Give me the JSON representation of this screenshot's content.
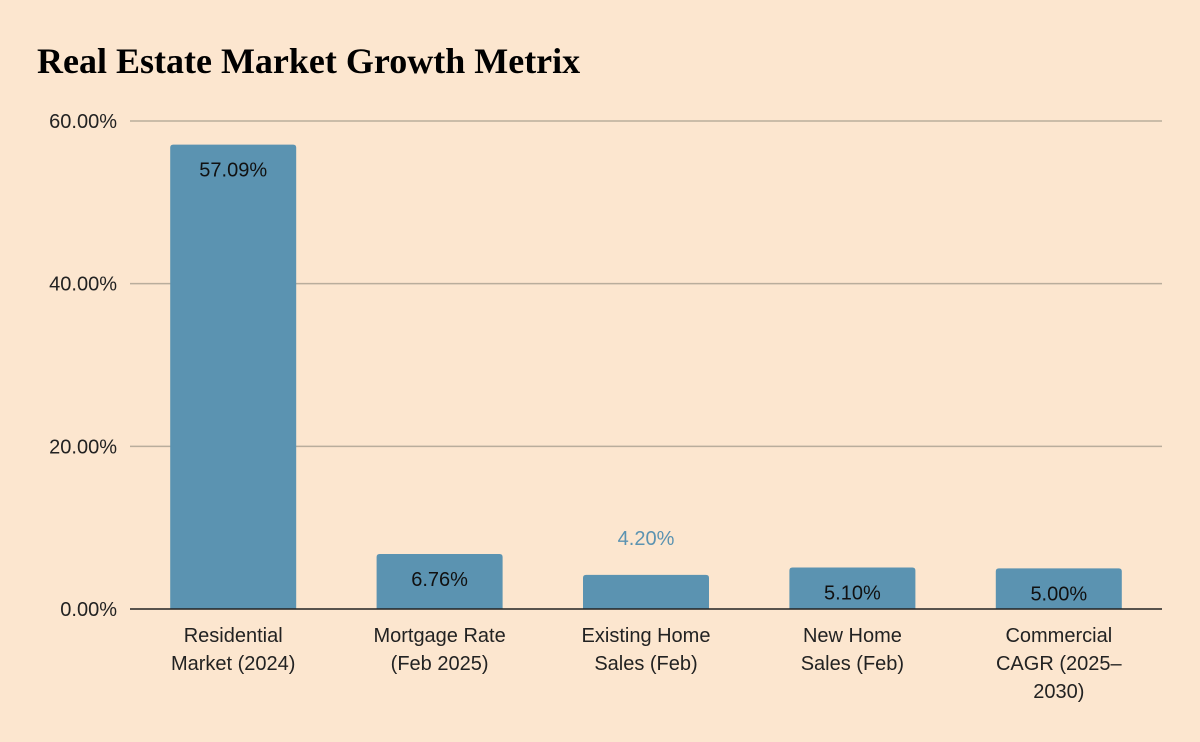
{
  "chart_data": {
    "type": "bar",
    "title": "Real Estate Market Growth Metrix",
    "xlabel": "",
    "ylabel": "",
    "ylim": [
      0,
      60
    ],
    "yticks": [
      "0.00%",
      "20.00%",
      "40.00%",
      "60.00%"
    ],
    "ytick_values": [
      0,
      20,
      40,
      60
    ],
    "grid": true,
    "categories": [
      [
        "Residential",
        "Market (2024)"
      ],
      [
        "Mortgage Rate",
        "(Feb 2025)"
      ],
      [
        "Existing Home",
        "Sales (Feb)"
      ],
      [
        "New Home",
        "Sales (Feb)"
      ],
      [
        "Commercial",
        "CAGR (2025–",
        "2030)"
      ]
    ],
    "values": [
      57.09,
      6.76,
      4.2,
      5.1,
      5.0
    ],
    "value_labels": [
      "57.09%",
      "6.76%",
      "4.20%",
      "5.10%",
      "5.00%"
    ],
    "colors": {
      "bar": "#5b93b1",
      "background": "#fce6cf",
      "grid": "#b9ad9c",
      "axis": "#222222",
      "label_inside": "#111111",
      "label_outside": "#5b93b1"
    }
  }
}
